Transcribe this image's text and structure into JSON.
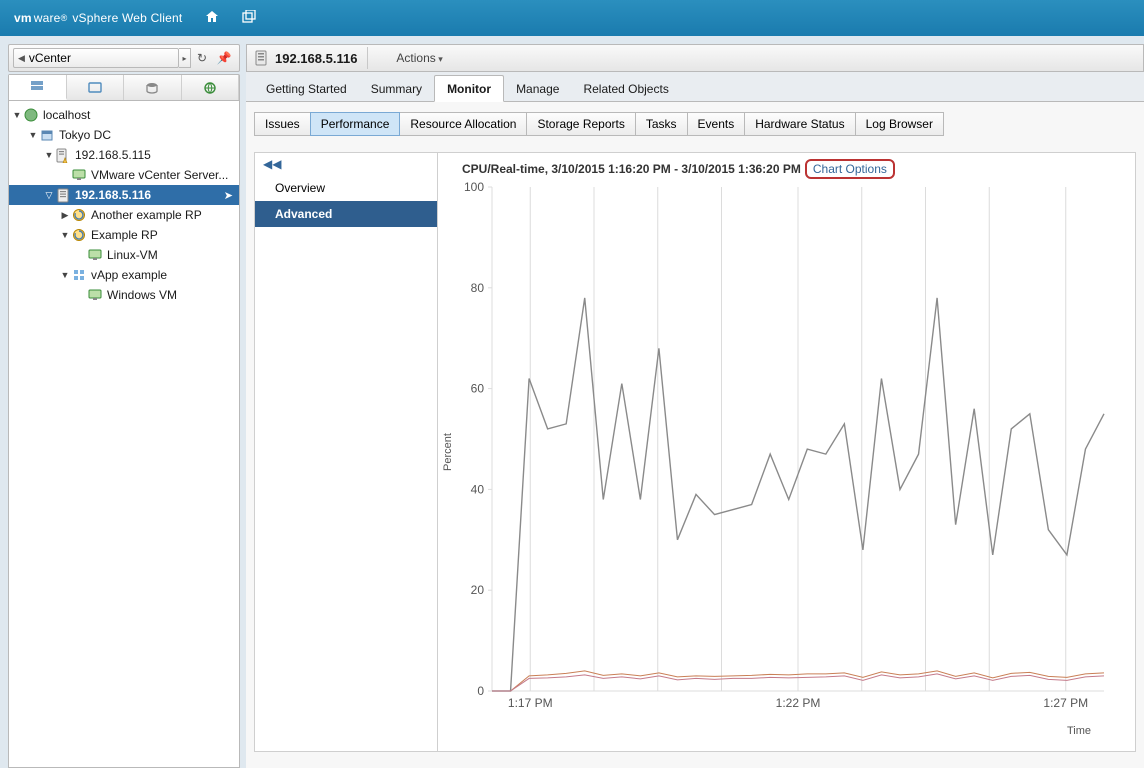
{
  "header": {
    "brand_prefix": "vm",
    "brand_mid": "ware",
    "brand_reg": "®",
    "brand_suffix": "vSphere Web Client"
  },
  "nav": {
    "crumb": "vCenter"
  },
  "tree": [
    {
      "depth": 0,
      "tw": "▼",
      "icon": "globe",
      "label": "localhost",
      "sel": false
    },
    {
      "depth": 1,
      "tw": "▼",
      "icon": "datacenter",
      "label": "Tokyo DC",
      "sel": false
    },
    {
      "depth": 2,
      "tw": "▼",
      "icon": "host-warn",
      "label": "192.168.5.115",
      "sel": false
    },
    {
      "depth": 3,
      "tw": "",
      "icon": "vm",
      "label": "VMware vCenter Server...",
      "sel": false
    },
    {
      "depth": 2,
      "tw": "▽",
      "icon": "host",
      "label": "192.168.5.116",
      "sel": true
    },
    {
      "depth": 3,
      "tw": "▶",
      "icon": "rp",
      "label": "Another example RP",
      "sel": false
    },
    {
      "depth": 3,
      "tw": "▼",
      "icon": "rp",
      "label": "Example RP",
      "sel": false
    },
    {
      "depth": 4,
      "tw": "",
      "icon": "vm",
      "label": "Linux-VM",
      "sel": false
    },
    {
      "depth": 3,
      "tw": "▼",
      "icon": "vapp",
      "label": "vApp example",
      "sel": false
    },
    {
      "depth": 4,
      "tw": "",
      "icon": "vm",
      "label": "Windows VM",
      "sel": false
    }
  ],
  "object": {
    "title": "192.168.5.116",
    "actions": "Actions"
  },
  "mainTabs": {
    "items": [
      "Getting Started",
      "Summary",
      "Monitor",
      "Manage",
      "Related Objects"
    ],
    "active": 2
  },
  "subTabs": {
    "items": [
      "Issues",
      "Performance",
      "Resource Allocation",
      "Storage Reports",
      "Tasks",
      "Events",
      "Hardware Status",
      "Log Browser"
    ],
    "active": 1
  },
  "leftcol": {
    "collapse": "◀◀",
    "items": [
      "Overview",
      "Advanced"
    ],
    "active": 1
  },
  "chart": {
    "title": "CPU/Real-time, 3/10/2015 1:16:20 PM - 3/10/2015 1:36:20 PM",
    "options_label": "Chart Options",
    "ylabel": "Percent",
    "xlabel": "Time",
    "ylim": [
      0,
      100
    ],
    "yticks": [
      0,
      20,
      40,
      60,
      80,
      100
    ],
    "xticks": [
      {
        "v": 1.5,
        "l": "1:17 PM"
      },
      {
        "v": 12,
        "l": "1:22 PM"
      },
      {
        "v": 22.5,
        "l": "1:27 PM"
      }
    ],
    "xlim": [
      0,
      24
    ],
    "grid_color": "#dcdcdc",
    "series": [
      {
        "color": "#8a8a8a",
        "width": 1.4,
        "values": [
          0,
          0,
          62,
          52,
          53,
          78,
          38,
          61,
          38,
          68,
          30,
          39,
          35,
          36,
          37,
          47,
          38,
          48,
          47,
          53,
          28,
          62,
          40,
          47,
          78,
          33,
          56,
          27,
          52,
          55,
          32,
          27,
          48,
          55
        ]
      },
      {
        "color": "#c97f56",
        "width": 1.0,
        "values": [
          0,
          0,
          3,
          3.2,
          3.5,
          4,
          3.1,
          3.4,
          3,
          3.6,
          2.8,
          3,
          2.9,
          3,
          3.1,
          3.3,
          3.2,
          3.4,
          3.4,
          3.6,
          2.7,
          3.8,
          3.2,
          3.4,
          4,
          2.9,
          3.6,
          2.6,
          3.5,
          3.7,
          2.9,
          2.7,
          3.4,
          3.6
        ]
      },
      {
        "color": "#c47a8a",
        "width": 1.0,
        "values": [
          0,
          0,
          2.5,
          2.6,
          2.8,
          3.2,
          2.5,
          2.8,
          2.4,
          3,
          2.2,
          2.5,
          2.3,
          2.5,
          2.5,
          2.7,
          2.6,
          2.7,
          2.8,
          3,
          2.1,
          3.2,
          2.6,
          2.8,
          3.4,
          2.4,
          3,
          2.1,
          2.9,
          3.1,
          2.3,
          2.1,
          2.8,
          3
        ]
      }
    ]
  }
}
